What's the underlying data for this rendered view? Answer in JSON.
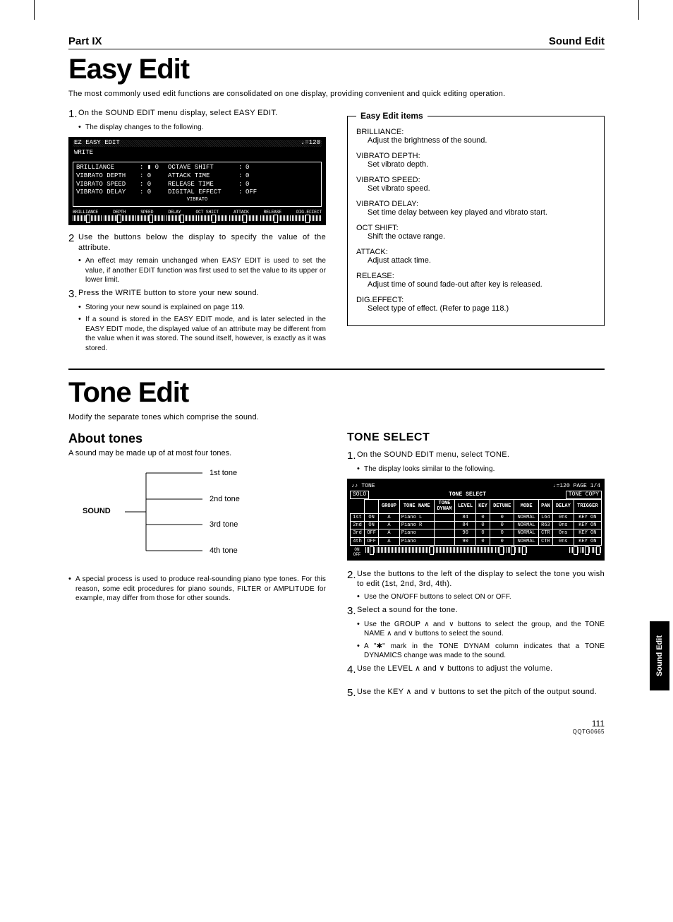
{
  "header": {
    "part": "Part IX",
    "section": "Sound Edit"
  },
  "h1": "Easy Edit",
  "intro": "The most commonly used edit functions are consolidated on one display, providing convenient and quick editing operation.",
  "steps1": {
    "s1": "On the SOUND EDIT menu display, select EASY EDIT.",
    "s1b": "The display changes to the following.",
    "s2n": "2",
    "s2": "Use the buttons below the display to specify the value of the attribute.",
    "s2b": "An effect may remain unchanged when EASY EDIT is used to set the value, if another EDIT function was first used to set the value to its upper or lower limit.",
    "s3": "Press the WRITE button to store your new sound.",
    "s3b1": "Storing your new sound is explained on page 119.",
    "s3b2": "If a sound is stored in the EASY EDIT mode, and is later selected in the EASY EDIT mode, the displayed value of an attribute may be different from the value when it was stored. The sound itself, however, is exactly as it was stored."
  },
  "lcd1": {
    "title": "EZ EASY EDIT",
    "tempo": "♩=120",
    "write": "WRITE",
    "rows": [
      [
        "BRILLIANCE",
        ": ▮ 0",
        "OCTAVE SHIFT",
        ":",
        "0"
      ],
      [
        "VIBRATO DEPTH",
        ":   0",
        "ATTACK TIME",
        ":",
        "0"
      ],
      [
        "VIBRATO SPEED",
        ":   0",
        "RELEASE TIME",
        ":",
        "0"
      ],
      [
        "VIBRATO DELAY",
        ":   0",
        "DIGITAL EFFECT",
        ":",
        "OFF"
      ]
    ],
    "vibrato": "VIBRATO",
    "bottom": [
      "BRILLIANCE",
      "DEPTH",
      "SPEED",
      "DELAY",
      "OCT SHIFT",
      "ATTACK",
      "RELEASE",
      "DIG.EFFECT"
    ]
  },
  "itemsTitle": "Easy Edit items",
  "items": [
    {
      "n": "BRILLIANCE:",
      "d": "Adjust the brightness of the sound."
    },
    {
      "n": "VIBRATO DEPTH:",
      "d": "Set vibrato depth."
    },
    {
      "n": "VIBRATO SPEED:",
      "d": "Set vibrato speed."
    },
    {
      "n": "VIBRATO DELAY:",
      "d": "Set time delay between key played and vibrato start."
    },
    {
      "n": "OCT SHIFT:",
      "d": "Shift the octave range."
    },
    {
      "n": "ATTACK:",
      "d": "Adjust attack time."
    },
    {
      "n": "RELEASE:",
      "d": "Adjust time of sound fade-out after key is released."
    },
    {
      "n": "DIG.EFFECT:",
      "d": "Select type of effect. (Refer to page 118.)"
    }
  ],
  "h1b": "Tone Edit",
  "introb": "Modify the separate tones which comprise the sound.",
  "about": {
    "title": "About tones",
    "text": "A sound may be made up of at most four tones.",
    "sound": "SOUND",
    "tones": [
      "1st tone",
      "2nd tone",
      "3rd tone",
      "4th tone"
    ],
    "note": "A special process is used to produce real-sounding piano type tones. For this reason, some edit procedures for piano sounds, FILTER or AMPLITUDE for example, may differ from those for other sounds."
  },
  "toneSelect": {
    "title": "TONE SELECT",
    "s1": "On the SOUND EDIT menu, select TONE.",
    "s1b": "The display looks similar to the following.",
    "s2": "Use the buttons to the left of the display to select the tone you wish to edit (1st, 2nd, 3rd, 4th).",
    "s2b": "Use the ON/OFF buttons to select ON or OFF.",
    "s3": "Select a sound for the tone.",
    "s3b1": "Use the GROUP ∧ and ∨ buttons to select the group, and the TONE NAME ∧ and ∨ buttons to select the sound.",
    "s3b2": "A \"✱\" mark in the TONE DYNAM column indicates that a TONE DYNAMICS change was made to the sound.",
    "s4": "Use the LEVEL ∧ and ∨ buttons to adjust the volume.",
    "s5": "Use the KEY ∧ and ∨ buttons to set the pitch of the output sound."
  },
  "lcd2": {
    "hdr_left": "♪♪ TONE",
    "hdr_right": "♩=120 PAGE 1/4",
    "solo": "SOLO",
    "title": "TONE SELECT",
    "copy": "TONE COPY",
    "cols": [
      "",
      "GROUP",
      "TONE NAME",
      "TONE DYNAM",
      "LEVEL",
      "KEY",
      "DETUNE",
      "PANNING MODE",
      "PAN",
      "DELAY",
      "TRIGGER"
    ],
    "rows": [
      [
        "1st",
        "ON",
        "A",
        "Piano L",
        "",
        "84",
        "0",
        "0",
        "NORMAL",
        "L64",
        "0ns",
        "KEY ON"
      ],
      [
        "2nd",
        "ON",
        "A",
        "Piano R",
        "",
        "84",
        "0",
        "0",
        "NORMAL",
        "R63",
        "0ns",
        "KEY ON"
      ],
      [
        "3rd",
        "OFF",
        "A",
        "Piano",
        "",
        "90",
        "0",
        "0",
        "NORMAL",
        "CTR",
        "0ns",
        "KEY ON"
      ],
      [
        "4th",
        "OFF",
        "A",
        "Piano",
        "",
        "90",
        "0",
        "0",
        "NORMAL",
        "CTR",
        "0ns",
        "KEY ON"
      ]
    ]
  },
  "sideTab": "Sound Edit",
  "pageNum": "111",
  "pageCode": "QQTG0665"
}
